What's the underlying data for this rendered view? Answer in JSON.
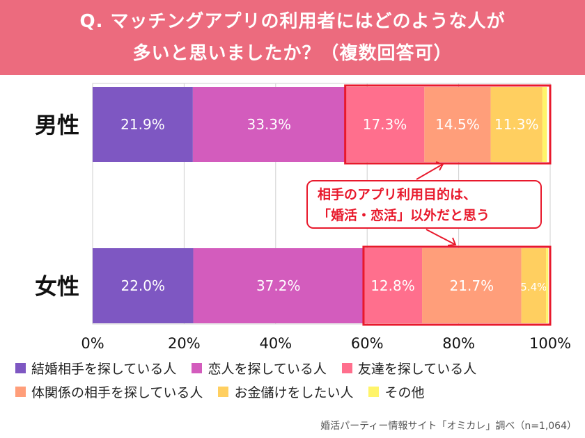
{
  "title": {
    "line1": "Q. マッチングアプリの利用者にはどのような人が",
    "line2": "多いと思いましたか？（複数回答可）"
  },
  "chart_data": {
    "type": "bar",
    "orientation": "horizontal",
    "stacked": true,
    "categories": [
      "男性",
      "女性"
    ],
    "series": [
      {
        "name": "結婚相手を探している人",
        "color": "#7e57c2",
        "values": [
          21.9,
          22.0
        ]
      },
      {
        "name": "恋人を探している人",
        "color": "#d35cbd",
        "values": [
          33.3,
          37.2
        ]
      },
      {
        "name": "友達を探している人",
        "color": "#ff6f8d",
        "values": [
          17.3,
          12.8
        ]
      },
      {
        "name": "体関係の相手を探している人",
        "color": "#ff9e7a",
        "values": [
          14.5,
          21.7
        ]
      },
      {
        "name": "お金儲けをしたい人",
        "color": "#ffcf60",
        "values": [
          11.3,
          5.4
        ]
      },
      {
        "name": "その他",
        "color": "#fff46a",
        "values": [
          1.0,
          0.5
        ]
      }
    ],
    "data_labels": [
      [
        "21.9%",
        "33.3%",
        "17.3%",
        "14.5%",
        "11.3%",
        ""
      ],
      [
        "22.0%",
        "37.2%",
        "12.8%",
        "21.7%",
        "5.4%",
        ""
      ]
    ],
    "xlim": [
      0,
      100
    ],
    "x_ticks": [
      "0%",
      "20%",
      "40%",
      "60%",
      "80%",
      "100%"
    ],
    "grid": true,
    "xlabel": "",
    "ylabel": ""
  },
  "callout": {
    "line1": "相手のアプリ利用目的は、",
    "line2": "「婚活・恋活」以外だと思う"
  },
  "legend": [
    {
      "label": "結婚相手を探している人",
      "color": "#7e57c2"
    },
    {
      "label": "恋人を探している人",
      "color": "#d35cbd"
    },
    {
      "label": "友達を探している人",
      "color": "#ff6f8d"
    },
    {
      "label": "体関係の相手を探している人",
      "color": "#ff9e7a"
    },
    {
      "label": "お金儲けをしたい人",
      "color": "#ffcf60"
    },
    {
      "label": "その他",
      "color": "#fff46a"
    }
  ],
  "source": "婚活パーティー情報サイト「オミカレ」調べ（n=1,064）"
}
